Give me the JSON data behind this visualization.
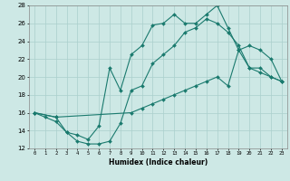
{
  "xlabel": "Humidex (Indice chaleur)",
  "bg_color": "#cde8e5",
  "grid_color": "#aacfcc",
  "line_color": "#1a7a6e",
  "xlim": [
    -0.5,
    23.5
  ],
  "ylim": [
    12,
    28
  ],
  "xticks": [
    0,
    1,
    2,
    3,
    4,
    5,
    6,
    7,
    8,
    9,
    10,
    11,
    12,
    13,
    14,
    15,
    16,
    17,
    18,
    19,
    20,
    21,
    22,
    23
  ],
  "yticks": [
    12,
    14,
    16,
    18,
    20,
    22,
    24,
    26,
    28
  ],
  "series1_x": [
    0,
    1,
    2,
    3,
    4,
    5,
    6,
    7,
    8,
    9,
    10,
    11,
    12,
    13,
    14,
    15,
    16,
    17,
    18,
    19,
    20,
    21,
    22,
    23
  ],
  "series1_y": [
    16.0,
    15.5,
    15.0,
    13.8,
    12.8,
    12.5,
    12.5,
    12.8,
    14.8,
    18.5,
    19.0,
    21.5,
    22.5,
    23.5,
    25.0,
    25.5,
    26.5,
    26.0,
    25.0,
    23.5,
    21.0,
    21.0,
    20.0,
    19.5
  ],
  "series2_x": [
    0,
    2,
    3,
    4,
    5,
    6,
    7,
    8,
    9,
    10,
    11,
    12,
    13,
    14,
    15,
    16,
    17,
    18,
    19,
    20,
    21,
    22,
    23
  ],
  "series2_y": [
    16.0,
    15.5,
    13.8,
    13.5,
    13.0,
    14.5,
    21.0,
    18.5,
    22.5,
    23.5,
    25.8,
    26.0,
    27.0,
    26.0,
    26.0,
    27.0,
    28.0,
    25.5,
    23.0,
    21.0,
    20.5,
    20.0,
    19.5
  ],
  "series3_x": [
    0,
    2,
    9,
    10,
    11,
    12,
    13,
    14,
    15,
    16,
    17,
    18,
    19,
    20,
    21,
    22,
    23
  ],
  "series3_y": [
    16.0,
    15.5,
    16.0,
    16.5,
    17.0,
    17.5,
    18.0,
    18.5,
    19.0,
    19.5,
    20.0,
    19.0,
    23.0,
    23.5,
    23.0,
    22.0,
    19.5
  ]
}
